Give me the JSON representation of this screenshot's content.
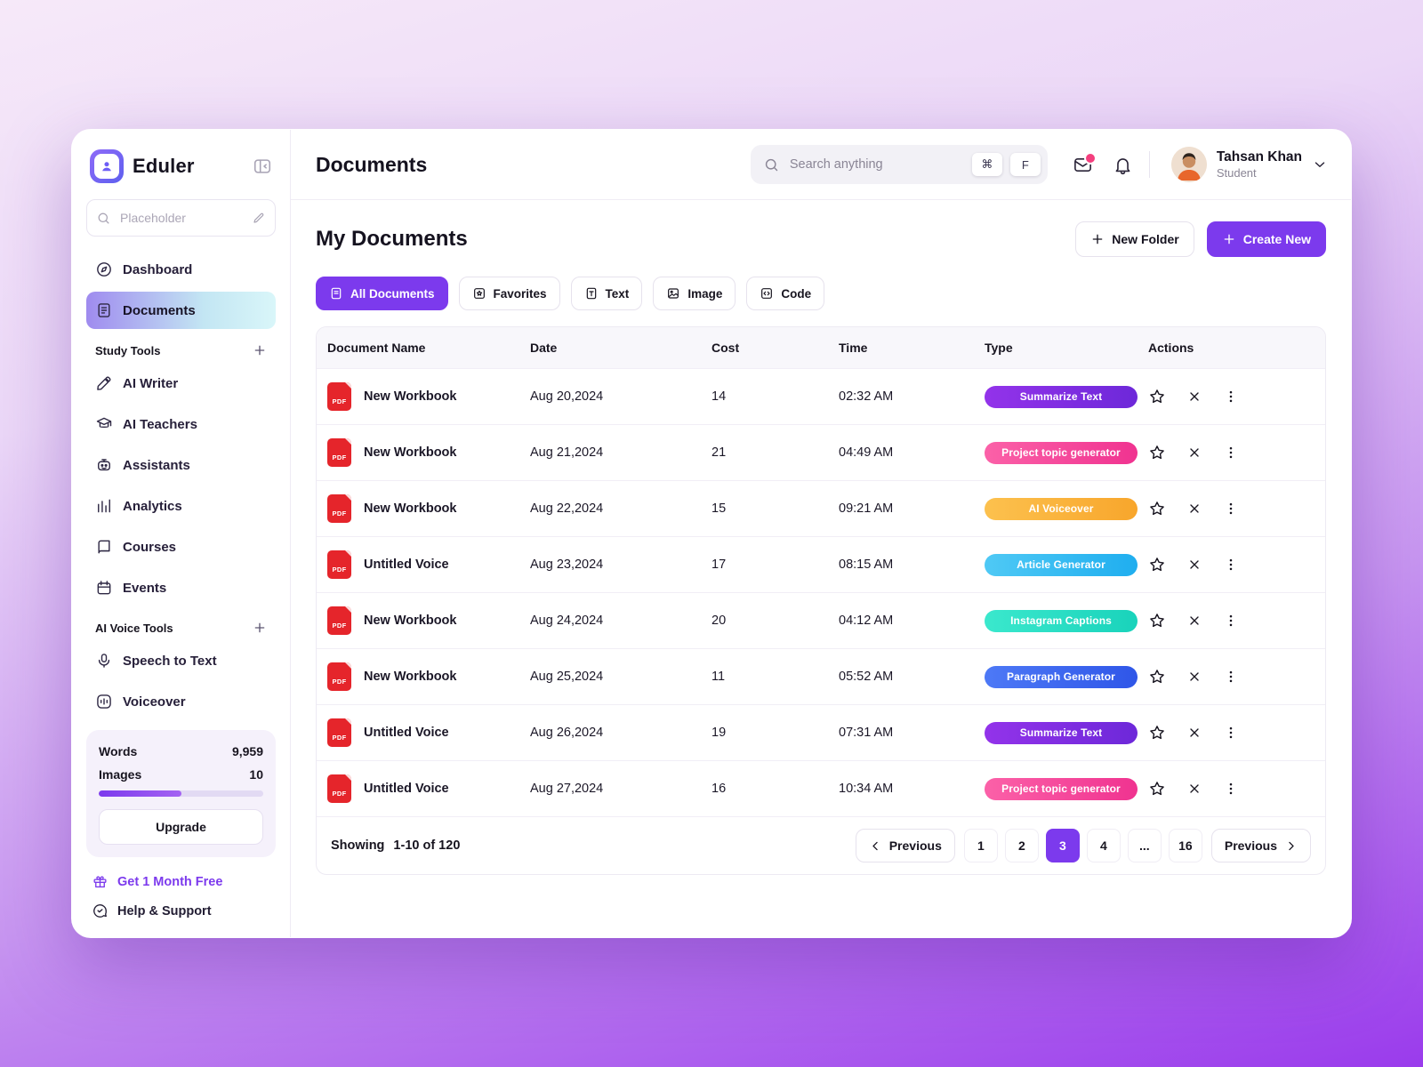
{
  "app": {
    "name": "Eduler"
  },
  "colors": {
    "accent": "#7C3AED",
    "background_gradient": [
      "#F6E9F9",
      "#9A3BEC"
    ],
    "active_nav_gradient": [
      "#9F8BEF",
      "#D9F6F9"
    ]
  },
  "sidebar": {
    "search_placeholder": "Placeholder",
    "nav": [
      {
        "label": "Dashboard"
      },
      {
        "label": "Documents",
        "active": true
      }
    ],
    "sections": [
      {
        "title": "Study Tools",
        "items": [
          "AI Writer",
          "AI Teachers",
          "Assistants",
          "Analytics",
          "Courses",
          "Events"
        ]
      },
      {
        "title": "AI Voice Tools",
        "items": [
          "Speech to Text",
          "Voiceover"
        ]
      }
    ],
    "usage": {
      "words_label": "Words",
      "words_value": "9,959",
      "images_label": "Images",
      "images_value": "10",
      "progress_percent": 50,
      "upgrade_label": "Upgrade"
    },
    "promo_label": "Get 1 Month Free",
    "help_label": "Help & Support"
  },
  "header": {
    "title": "Documents",
    "search_placeholder": "Search anything",
    "keys": [
      "⌘",
      "F"
    ],
    "user": {
      "name": "Tahsan Khan",
      "role": "Student"
    }
  },
  "main": {
    "title": "My Documents",
    "new_folder_label": "New Folder",
    "create_new_label": "Create New",
    "filters": [
      {
        "label": "All Documents",
        "active": true
      },
      {
        "label": "Favorites"
      },
      {
        "label": "Text"
      },
      {
        "label": "Image"
      },
      {
        "label": "Code"
      }
    ],
    "table": {
      "columns": [
        "Document Name",
        "Date",
        "Cost",
        "Time",
        "Type",
        "Actions"
      ],
      "rows": [
        {
          "name": "New Workbook",
          "date": "Aug 20,2024",
          "cost": "14",
          "time": "02:32 AM",
          "type": "Summarize Text",
          "type_colors": [
            "#9333EA",
            "#6D28D9"
          ]
        },
        {
          "name": "New Workbook",
          "date": "Aug 21,2024",
          "cost": "21",
          "time": "04:49 AM",
          "type": "Project topic generator",
          "type_colors": [
            "#FB61A8",
            "#F03390"
          ]
        },
        {
          "name": "New Workbook",
          "date": "Aug 22,2024",
          "cost": "15",
          "time": "09:21 AM",
          "type": "AI Voiceover",
          "type_colors": [
            "#FCC14E",
            "#F8A62C"
          ]
        },
        {
          "name": "Untitled Voice",
          "date": "Aug 23,2024",
          "cost": "17",
          "time": "08:15 AM",
          "type": "Article Generator",
          "type_colors": [
            "#4FC9F5",
            "#1FAEEF"
          ]
        },
        {
          "name": "New Workbook",
          "date": "Aug 24,2024",
          "cost": "20",
          "time": "04:12 AM",
          "type": "Instagram Captions",
          "type_colors": [
            "#3BE8CD",
            "#19D3BB"
          ]
        },
        {
          "name": "New Workbook",
          "date": "Aug 25,2024",
          "cost": "11",
          "time": "05:52 AM",
          "type": "Paragraph Generator",
          "type_colors": [
            "#4D79F6",
            "#2F56E8"
          ]
        },
        {
          "name": "Untitled Voice",
          "date": "Aug 26,2024",
          "cost": "19",
          "time": "07:31 AM",
          "type": "Summarize Text",
          "type_colors": [
            "#9333EA",
            "#6D28D9"
          ]
        },
        {
          "name": "Untitled Voice",
          "date": "Aug 27,2024",
          "cost": "16",
          "time": "10:34 AM",
          "type": "Project topic generator",
          "type_colors": [
            "#FB61A8",
            "#F03390"
          ]
        }
      ]
    },
    "footer": {
      "showing_label": "Showing",
      "showing_range": "1-10 of 120",
      "prev_label": "Previous",
      "next_label": "Previous",
      "pages": [
        {
          "label": "1"
        },
        {
          "label": "2"
        },
        {
          "label": "3",
          "active": true
        },
        {
          "label": "4"
        },
        {
          "label": "..."
        },
        {
          "label": "16"
        }
      ]
    }
  }
}
